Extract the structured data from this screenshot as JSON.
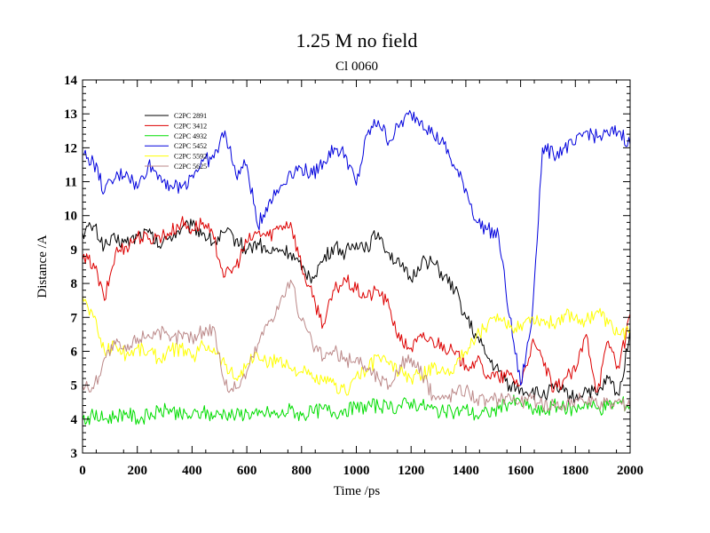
{
  "chart_data": {
    "type": "line",
    "title": "1.25 M no field",
    "subtitle": "Cl 0060",
    "xlabel": "Time /ps",
    "ylabel": "Distance /A",
    "xlim": [
      0,
      2000
    ],
    "ylim": [
      3,
      14
    ],
    "x_ticks": [
      0,
      200,
      400,
      600,
      800,
      1000,
      1200,
      1400,
      1600,
      1800,
      2000
    ],
    "y_ticks": [
      3,
      4,
      5,
      6,
      7,
      8,
      9,
      10,
      11,
      12,
      13,
      14
    ],
    "grid": false,
    "legend_position": "top-left",
    "series": [
      {
        "name": "C2PC 2891",
        "color": "#000000",
        "x": [
          0,
          40,
          80,
          120,
          160,
          200,
          240,
          280,
          320,
          360,
          400,
          440,
          480,
          520,
          560,
          600,
          640,
          680,
          720,
          760,
          800,
          840,
          880,
          920,
          960,
          1000,
          1040,
          1080,
          1120,
          1160,
          1200,
          1240,
          1280,
          1320,
          1360,
          1400,
          1440,
          1480,
          1520,
          1560,
          1600,
          1640,
          1680,
          1720,
          1760,
          1800,
          1840,
          1880,
          1920,
          1960,
          2000
        ],
        "values": [
          9.5,
          9.7,
          9.1,
          9.3,
          9.2,
          9.4,
          9.5,
          9.1,
          9.4,
          9.6,
          9.7,
          9.5,
          9.2,
          9.5,
          9.3,
          9.0,
          9.2,
          8.9,
          9.0,
          8.9,
          8.4,
          8.2,
          8.7,
          9.1,
          8.9,
          9.2,
          9.1,
          9.5,
          8.9,
          8.5,
          8.1,
          8.7,
          8.6,
          8.2,
          7.8,
          7.0,
          6.4,
          5.8,
          5.4,
          5.0,
          4.9,
          4.8,
          4.7,
          4.9,
          4.8,
          4.6,
          4.9,
          4.7,
          5.2,
          4.7,
          6.7
        ]
      },
      {
        "name": "C2PC 3412",
        "color": "#dd0000",
        "x": [
          0,
          40,
          80,
          120,
          160,
          200,
          240,
          280,
          320,
          360,
          400,
          440,
          480,
          520,
          560,
          600,
          640,
          680,
          720,
          760,
          800,
          840,
          880,
          920,
          960,
          1000,
          1040,
          1080,
          1120,
          1160,
          1200,
          1240,
          1280,
          1320,
          1360,
          1400,
          1440,
          1480,
          1520,
          1560,
          1600,
          1640,
          1680,
          1720,
          1760,
          1800,
          1840,
          1880,
          1920,
          1960,
          2000
        ],
        "values": [
          8.7,
          8.6,
          7.5,
          8.9,
          9.1,
          9.4,
          9.3,
          9.4,
          9.5,
          9.8,
          9.6,
          9.8,
          9.3,
          8.2,
          8.5,
          9.2,
          9.5,
          9.4,
          9.7,
          9.8,
          8.5,
          7.6,
          6.8,
          7.8,
          8.1,
          7.8,
          7.6,
          7.8,
          7.3,
          6.3,
          6.1,
          6.4,
          6.3,
          6.2,
          5.9,
          5.6,
          5.7,
          5.3,
          5.2,
          5.3,
          5.0,
          6.2,
          5.8,
          4.8,
          5.2,
          5.4,
          6.5,
          4.8,
          6.3,
          5.5,
          7.1
        ]
      },
      {
        "name": "C2PC 4932",
        "color": "#00dd00",
        "x": [
          0,
          40,
          80,
          120,
          160,
          200,
          240,
          280,
          320,
          360,
          400,
          440,
          480,
          520,
          560,
          600,
          640,
          680,
          720,
          760,
          800,
          840,
          880,
          920,
          960,
          1000,
          1040,
          1080,
          1120,
          1160,
          1200,
          1240,
          1280,
          1320,
          1360,
          1400,
          1440,
          1480,
          1520,
          1560,
          1600,
          1640,
          1680,
          1720,
          1760,
          1800,
          1840,
          1880,
          1920,
          1960,
          2000
        ],
        "values": [
          4.0,
          4.1,
          4.0,
          4.1,
          4.2,
          4.0,
          4.1,
          4.2,
          4.3,
          4.1,
          4.1,
          4.2,
          4.1,
          4.2,
          4.1,
          4.2,
          4.1,
          4.2,
          4.1,
          4.3,
          4.1,
          4.2,
          4.3,
          4.2,
          4.3,
          4.3,
          4.4,
          4.4,
          4.3,
          4.4,
          4.5,
          4.4,
          4.3,
          4.2,
          4.2,
          4.3,
          4.1,
          4.2,
          4.3,
          4.5,
          4.5,
          4.3,
          4.2,
          4.4,
          4.3,
          4.3,
          4.5,
          4.3,
          4.4,
          4.5,
          4.4
        ]
      },
      {
        "name": "C2PC 5452",
        "color": "#0000dd",
        "x": [
          0,
          40,
          80,
          120,
          160,
          200,
          240,
          280,
          320,
          360,
          400,
          440,
          480,
          520,
          560,
          600,
          640,
          680,
          720,
          760,
          800,
          840,
          880,
          920,
          960,
          1000,
          1040,
          1080,
          1120,
          1160,
          1200,
          1240,
          1280,
          1320,
          1360,
          1400,
          1440,
          1480,
          1520,
          1560,
          1600,
          1640,
          1680,
          1720,
          1760,
          1800,
          1840,
          1880,
          1920,
          1960,
          2000
        ],
        "values": [
          11.8,
          11.6,
          10.7,
          11.1,
          11.3,
          10.8,
          11.5,
          11.2,
          10.9,
          10.8,
          11.2,
          11.6,
          11.7,
          12.5,
          11.2,
          11.5,
          9.7,
          10.4,
          10.8,
          11.3,
          11.4,
          11.2,
          11.6,
          12.0,
          11.8,
          10.9,
          12.4,
          12.8,
          12.2,
          12.7,
          13.0,
          12.8,
          12.4,
          12.1,
          11.4,
          10.8,
          9.8,
          9.6,
          9.4,
          7.0,
          5.0,
          6.8,
          12.0,
          11.8,
          12.0,
          12.1,
          12.5,
          12.3,
          12.4,
          12.5,
          12.1
        ]
      },
      {
        "name": "C2PC 5592",
        "color": "#ffff00",
        "x": [
          0,
          40,
          80,
          120,
          160,
          200,
          240,
          280,
          320,
          360,
          400,
          440,
          480,
          520,
          560,
          600,
          640,
          680,
          720,
          760,
          800,
          840,
          880,
          920,
          960,
          1000,
          1040,
          1080,
          1120,
          1160,
          1200,
          1240,
          1280,
          1320,
          1360,
          1400,
          1440,
          1480,
          1520,
          1560,
          1600,
          1640,
          1680,
          1720,
          1760,
          1800,
          1840,
          1880,
          1920,
          1960,
          2000
        ],
        "values": [
          7.6,
          7.0,
          6.0,
          6.2,
          5.9,
          6.1,
          6.0,
          5.8,
          6.0,
          6.1,
          5.8,
          6.2,
          6.1,
          5.6,
          5.2,
          5.6,
          5.9,
          5.6,
          5.8,
          5.5,
          5.4,
          5.2,
          5.1,
          5.0,
          4.8,
          5.3,
          5.4,
          5.9,
          5.6,
          5.4,
          5.2,
          5.3,
          5.5,
          5.4,
          5.6,
          6.0,
          6.5,
          6.8,
          6.9,
          6.7,
          6.8,
          7.0,
          6.9,
          6.8,
          7.1,
          7.0,
          6.9,
          7.2,
          6.8,
          6.5,
          6.6
        ]
      },
      {
        "name": "C2PC 5625",
        "color": "#bb8888",
        "x": [
          0,
          40,
          80,
          120,
          160,
          200,
          240,
          280,
          320,
          360,
          400,
          440,
          480,
          520,
          560,
          600,
          640,
          680,
          720,
          760,
          800,
          840,
          880,
          920,
          960,
          1000,
          1040,
          1080,
          1120,
          1160,
          1200,
          1240,
          1280,
          1320,
          1360,
          1400,
          1440,
          1480,
          1520,
          1560,
          1600,
          1640,
          1680,
          1720,
          1760,
          1800,
          1840,
          1880,
          1920,
          1960,
          2000
        ],
        "values": [
          5.0,
          4.9,
          5.8,
          6.2,
          6.0,
          6.4,
          6.5,
          6.6,
          6.3,
          6.5,
          6.4,
          6.6,
          6.7,
          5.0,
          4.9,
          5.4,
          6.2,
          6.9,
          7.4,
          8.1,
          6.9,
          6.2,
          5.8,
          6.0,
          5.7,
          5.8,
          5.5,
          5.2,
          5.0,
          5.6,
          5.8,
          5.3,
          4.7,
          4.6,
          4.8,
          4.9,
          4.6,
          4.5,
          4.6,
          4.7,
          4.5,
          4.6,
          4.4,
          4.5,
          4.4,
          4.6,
          4.5,
          4.4,
          4.5,
          4.6,
          4.3
        ]
      }
    ]
  }
}
